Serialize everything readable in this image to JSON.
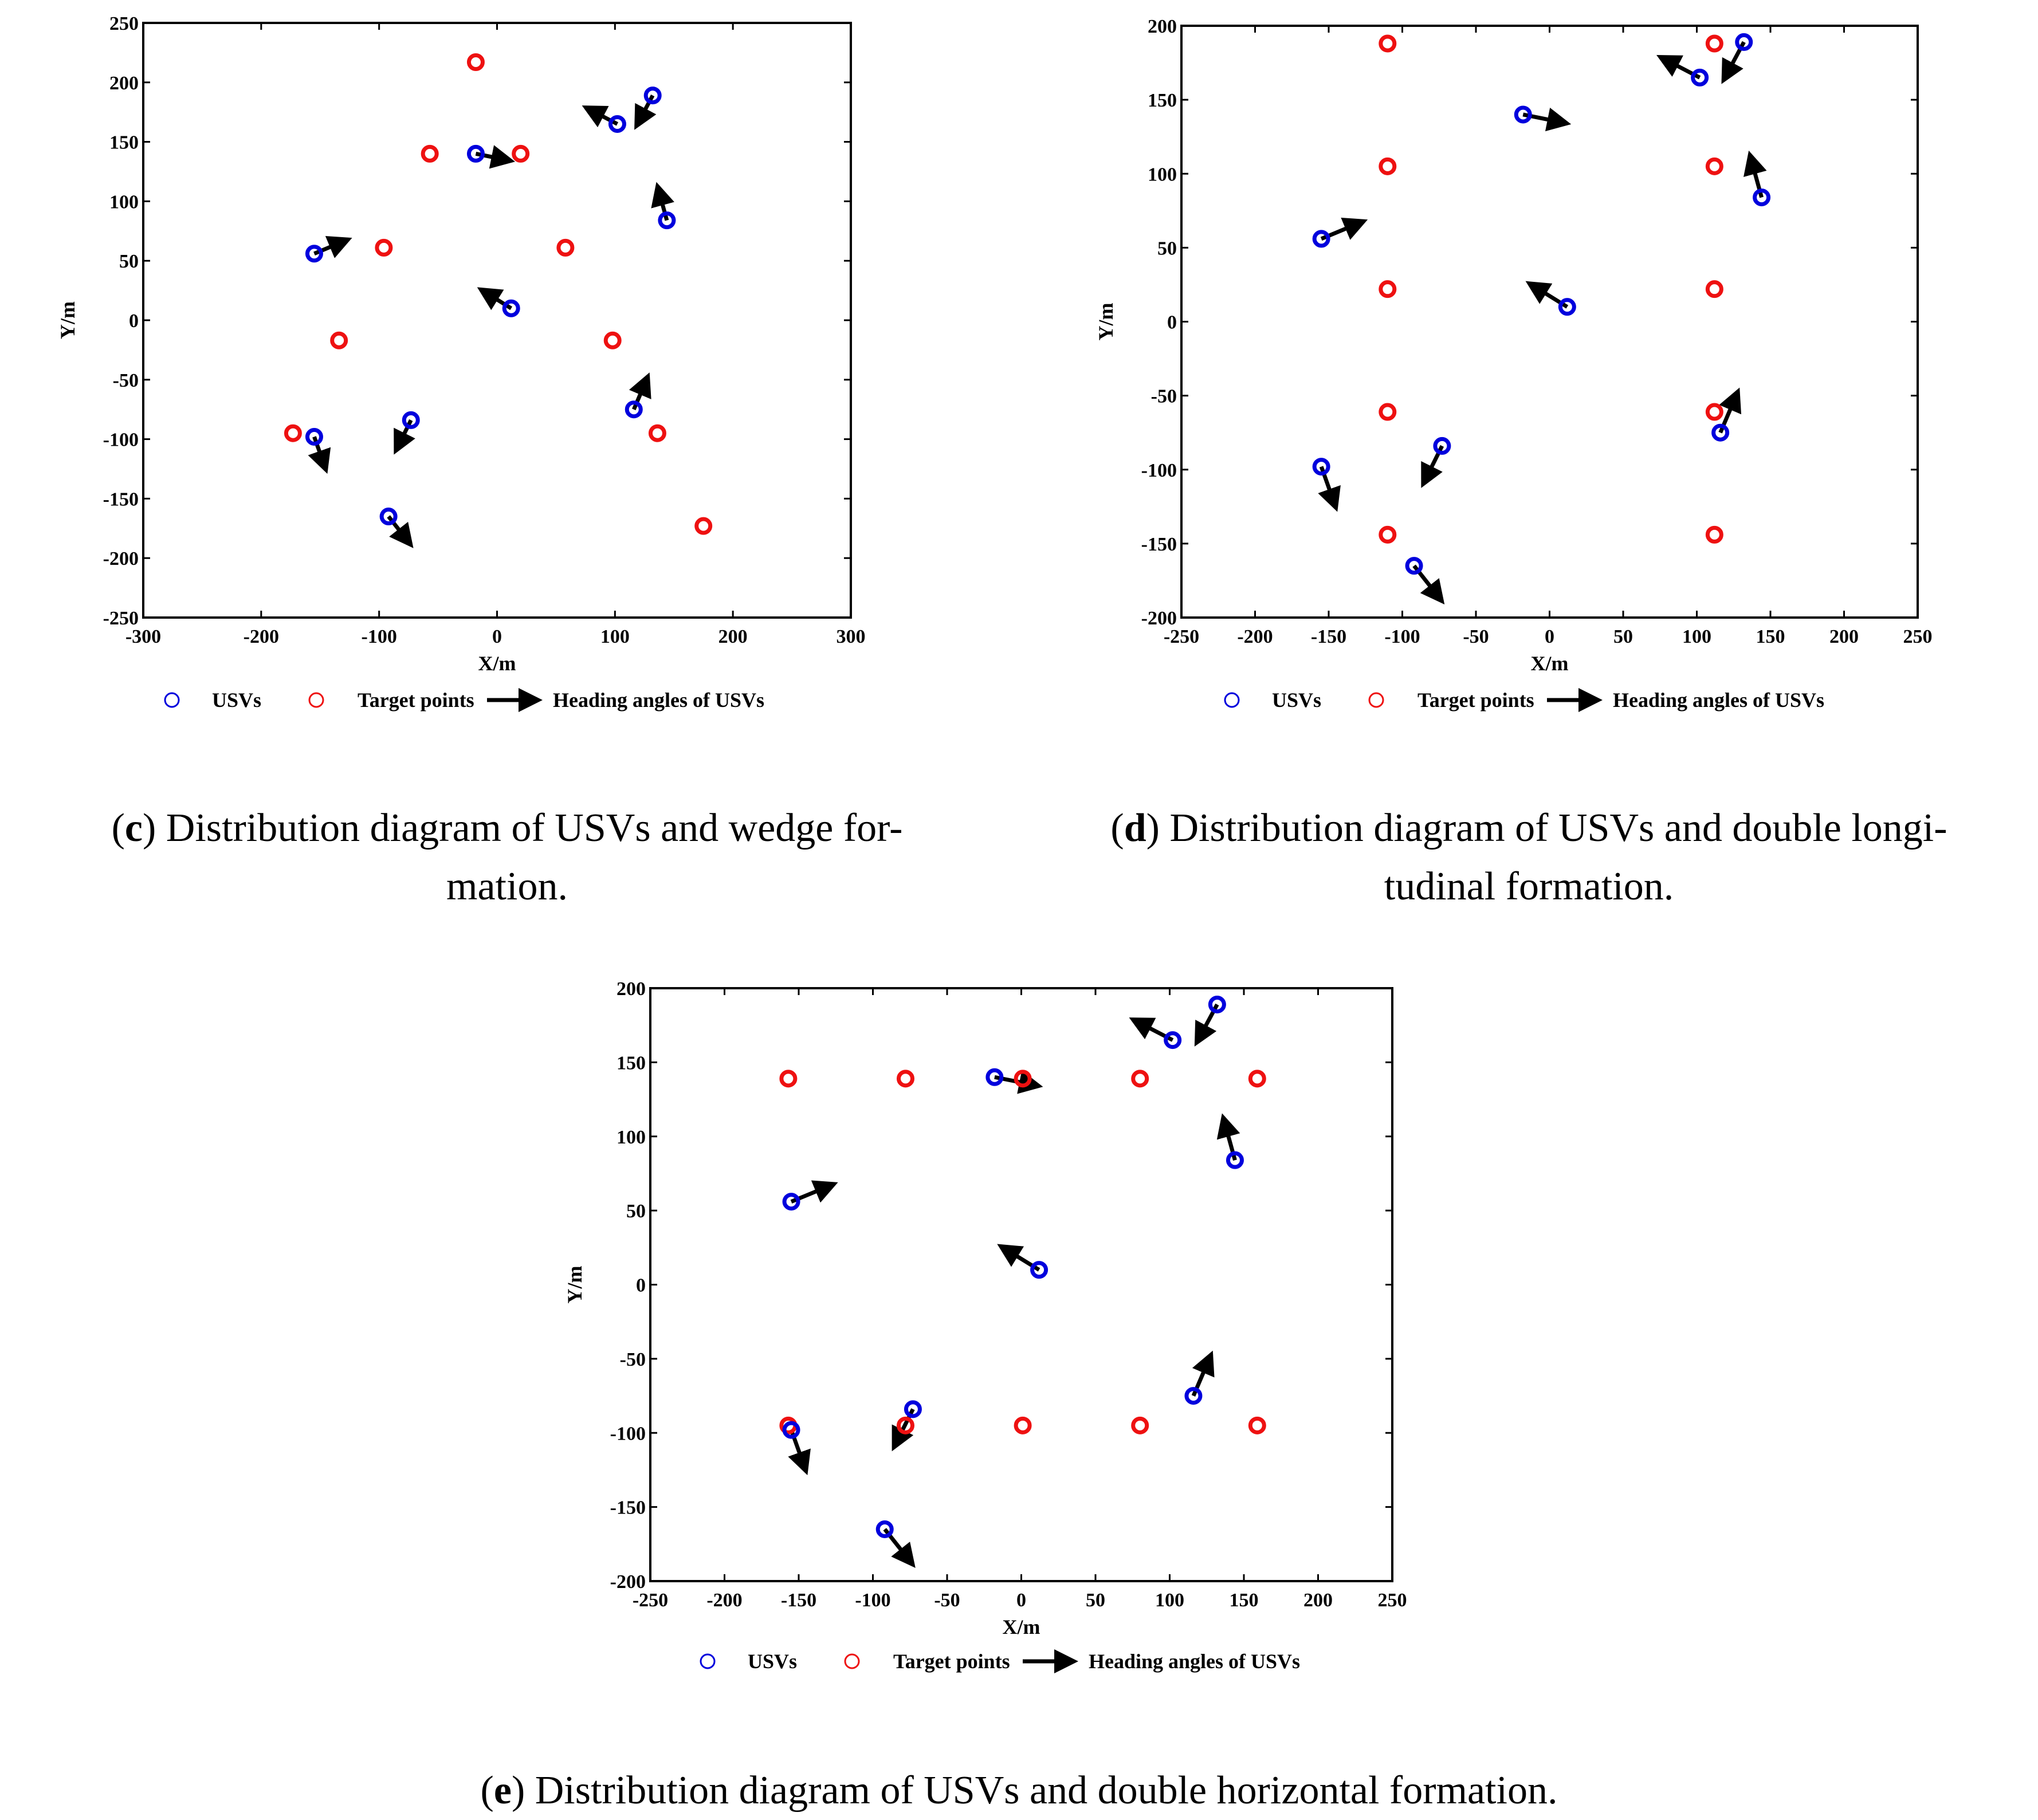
{
  "colors": {
    "usv": "#0000dd",
    "target": "#ee1111",
    "arrow": "#000000",
    "axis": "#000000"
  },
  "legend": {
    "usvs": "USVs",
    "targets": "Target points",
    "heading": "Heading angles of USVs"
  },
  "captions": [
    {
      "letter": "c",
      "lines": [
        ") Distribution diagram of USVs and wedge for-",
        "mation."
      ]
    },
    {
      "letter": "d",
      "lines": [
        ") Distribution diagram of USVs and double longi-",
        "tudinal formation."
      ]
    },
    {
      "letter": "e",
      "lines": [
        ") Distribution diagram of USVs and double horizontal formation."
      ]
    }
  ],
  "chart_data": [
    {
      "panel": "c",
      "type": "scatter",
      "xlabel": "X/m",
      "ylabel": "Y/m",
      "xlim": [
        -300,
        300
      ],
      "ylim": [
        -250,
        250
      ],
      "xticks": [
        -300,
        -200,
        -100,
        0,
        100,
        200,
        300
      ],
      "yticks": [
        -250,
        -200,
        -150,
        -100,
        -50,
        0,
        50,
        100,
        150,
        200,
        250
      ],
      "series": [
        {
          "name": "USVs",
          "points": [
            [
              -155,
              56
            ],
            [
              -155,
              -98
            ],
            [
              -92,
              -165
            ],
            [
              -73,
              -84
            ],
            [
              -18,
              140
            ],
            [
              12,
              10
            ],
            [
              102,
              165
            ],
            [
              132,
              189
            ],
            [
              144,
              84
            ],
            [
              116,
              -75
            ]
          ]
        },
        {
          "name": "Target points",
          "points": [
            [
              -18,
              217
            ],
            [
              -57,
              140
            ],
            [
              20,
              140
            ],
            [
              -96,
              61
            ],
            [
              58,
              61
            ],
            [
              -134,
              -17
            ],
            [
              98,
              -17
            ],
            [
              -173,
              -95
            ],
            [
              136,
              -95
            ],
            [
              175,
              -173
            ]
          ]
        },
        {
          "name": "Heading angles of USVs",
          "arrows": [
            [
              -155,
              56,
              -126,
              68
            ],
            [
              -155,
              -98,
              -145,
              -126
            ],
            [
              -92,
              -165,
              -73,
              -189
            ],
            [
              -73,
              -84,
              -86,
              -110
            ],
            [
              -18,
              140,
              12,
              134
            ],
            [
              12,
              10,
              -14,
              26
            ],
            [
              102,
              165,
              75,
              179
            ],
            [
              132,
              189,
              118,
              163
            ],
            [
              144,
              84,
              136,
              113
            ],
            [
              116,
              -75,
              128,
              -47
            ]
          ]
        }
      ]
    },
    {
      "panel": "d",
      "type": "scatter",
      "xlabel": "X/m",
      "ylabel": "Y/m",
      "xlim": [
        -250,
        250
      ],
      "ylim": [
        -200,
        200
      ],
      "xticks": [
        -250,
        -200,
        -150,
        -100,
        -50,
        0,
        50,
        100,
        150,
        200,
        250
      ],
      "yticks": [
        -200,
        -150,
        -100,
        -50,
        0,
        50,
        100,
        150,
        200
      ],
      "series": [
        {
          "name": "USVs",
          "points": [
            [
              -155,
              56
            ],
            [
              -155,
              -98
            ],
            [
              -92,
              -165
            ],
            [
              -73,
              -84
            ],
            [
              -18,
              140
            ],
            [
              12,
              10
            ],
            [
              102,
              165
            ],
            [
              132,
              189
            ],
            [
              144,
              84
            ],
            [
              116,
              -75
            ]
          ]
        },
        {
          "name": "Target points",
          "points": [
            [
              -110,
              188
            ],
            [
              -110,
              105
            ],
            [
              -110,
              22
            ],
            [
              -110,
              -61
            ],
            [
              -110,
              -144
            ],
            [
              112,
              188
            ],
            [
              112,
              105
            ],
            [
              112,
              22
            ],
            [
              112,
              -61
            ],
            [
              112,
              -144
            ]
          ]
        },
        {
          "name": "Heading angles of USVs",
          "arrows": [
            [
              -155,
              56,
              -126,
              68
            ],
            [
              -155,
              -98,
              -145,
              -126
            ],
            [
              -92,
              -165,
              -73,
              -189
            ],
            [
              -73,
              -84,
              -86,
              -110
            ],
            [
              -18,
              140,
              12,
              134
            ],
            [
              12,
              10,
              -14,
              26
            ],
            [
              102,
              165,
              75,
              179
            ],
            [
              132,
              189,
              118,
              163
            ],
            [
              144,
              84,
              136,
              113
            ],
            [
              116,
              -75,
              128,
              -47
            ]
          ]
        }
      ]
    },
    {
      "panel": "e",
      "type": "scatter",
      "xlabel": "X/m",
      "ylabel": "Y/m",
      "xlim": [
        -250,
        250
      ],
      "ylim": [
        -200,
        200
      ],
      "xticks": [
        -250,
        -200,
        -150,
        -100,
        -50,
        0,
        50,
        100,
        150,
        200,
        250
      ],
      "yticks": [
        -200,
        -150,
        -100,
        -50,
        0,
        50,
        100,
        150,
        200
      ],
      "series": [
        {
          "name": "USVs",
          "points": [
            [
              -155,
              56
            ],
            [
              -155,
              -98
            ],
            [
              -92,
              -165
            ],
            [
              -73,
              -84
            ],
            [
              -18,
              140
            ],
            [
              12,
              10
            ],
            [
              102,
              165
            ],
            [
              132,
              189
            ],
            [
              144,
              84
            ],
            [
              116,
              -75
            ]
          ]
        },
        {
          "name": "Target points",
          "points": [
            [
              -157,
              139
            ],
            [
              -78,
              139
            ],
            [
              1,
              139
            ],
            [
              80,
              139
            ],
            [
              159,
              139
            ],
            [
              -157,
              -95
            ],
            [
              -78,
              -95
            ],
            [
              1,
              -95
            ],
            [
              80,
              -95
            ],
            [
              159,
              -95
            ]
          ]
        },
        {
          "name": "Heading angles of USVs",
          "arrows": [
            [
              -155,
              56,
              -126,
              68
            ],
            [
              -155,
              -98,
              -145,
              -126
            ],
            [
              -92,
              -165,
              -73,
              -189
            ],
            [
              -73,
              -84,
              -86,
              -110
            ],
            [
              -18,
              140,
              12,
              134
            ],
            [
              12,
              10,
              -14,
              26
            ],
            [
              102,
              165,
              75,
              179
            ],
            [
              132,
              189,
              118,
              163
            ],
            [
              144,
              84,
              136,
              113
            ],
            [
              116,
              -75,
              128,
              -47
            ]
          ]
        }
      ]
    }
  ]
}
